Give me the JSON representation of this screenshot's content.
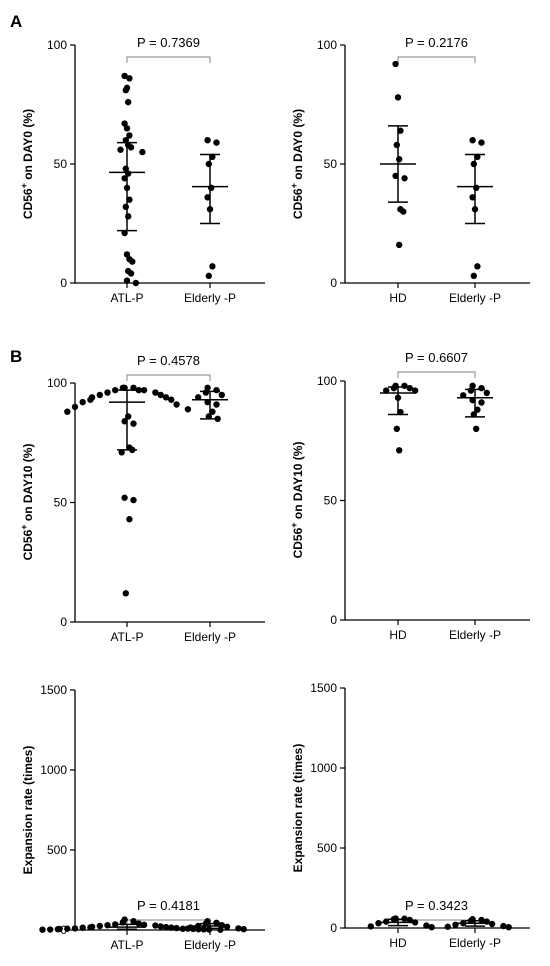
{
  "panel_labels": [
    "A",
    "B"
  ],
  "chart_data": [
    {
      "type": "scatter",
      "panel": "A",
      "ylabel": "CD56+ on DAY0 (%)",
      "ylabel_main": "CD56",
      "ylabel_sup": "+",
      "ylabel_rest": " on DAY0 (%)",
      "ylim": [
        0,
        100
      ],
      "yticks": [
        0,
        50,
        100
      ],
      "categories": [
        "ATL-P",
        "Elderly -P"
      ],
      "p_value": "P = 0.7369",
      "groups": [
        {
          "name": "ATL-P",
          "mean": 46.5,
          "sd_low": 22,
          "sd_high": 59,
          "values": [
            87,
            82,
            86,
            81,
            76,
            67,
            65,
            62,
            60,
            58,
            57,
            56,
            55,
            48,
            46,
            44,
            40,
            35,
            32,
            28,
            21,
            12,
            10,
            9,
            5,
            4,
            1,
            0
          ]
        },
        {
          "name": "Elderly -P",
          "mean": 40.5,
          "sd_low": 25,
          "sd_high": 54,
          "values": [
            60,
            59,
            53,
            50,
            40,
            36,
            31,
            7,
            3
          ]
        }
      ]
    },
    {
      "type": "scatter",
      "panel": "A",
      "ylabel": "CD56+ on DAY0 (%)",
      "ylabel_main": "CD56",
      "ylabel_sup": "+",
      "ylabel_rest": " on DAY0 (%)",
      "ylim": [
        0,
        100
      ],
      "yticks": [
        0,
        50,
        100
      ],
      "categories": [
        "HD",
        "Elderly -P"
      ],
      "p_value": "P = 0.2176",
      "groups": [
        {
          "name": "HD",
          "mean": 50,
          "sd_low": 34,
          "sd_high": 66,
          "values": [
            92,
            78,
            64,
            58,
            52,
            45,
            44,
            31,
            30,
            16
          ]
        },
        {
          "name": "Elderly -P",
          "mean": 40.5,
          "sd_low": 25,
          "sd_high": 54,
          "values": [
            60,
            59,
            53,
            50,
            40,
            36,
            31,
            7,
            3
          ]
        }
      ]
    },
    {
      "type": "scatter",
      "panel": "B",
      "ylabel": "CD56+ on DAY10 (%)",
      "ylabel_main": "CD56",
      "ylabel_sup": "+",
      "ylabel_rest": " on DAY10 (%)",
      "ylim": [
        0,
        100
      ],
      "yticks": [
        0,
        50,
        100
      ],
      "categories": [
        "ATL-P",
        "Elderly -P"
      ],
      "p_value": "P = 0.4578",
      "groups": [
        {
          "name": "ATL-P",
          "mean": 92,
          "sd_low": 72,
          "sd_high": 97,
          "values": [
            98,
            98,
            98,
            97,
            97,
            97,
            96,
            96,
            95,
            95,
            94,
            94,
            93,
            93,
            92,
            91,
            90,
            89,
            88,
            86,
            84,
            83,
            73,
            72,
            71,
            52,
            51,
            43,
            12
          ]
        },
        {
          "name": "Elderly -P",
          "mean": 93,
          "sd_low": 85,
          "sd_high": 96.5,
          "values": [
            98,
            97,
            96,
            95,
            94,
            92,
            91,
            88,
            86,
            85
          ]
        }
      ]
    },
    {
      "type": "scatter",
      "panel": "B",
      "ylabel": "CD56+ on DAY10 (%)",
      "ylabel_main": "CD56",
      "ylabel_sup": "+",
      "ylabel_rest": " on DAY10 (%)",
      "ylim": [
        0,
        100
      ],
      "yticks": [
        0,
        50,
        100
      ],
      "categories": [
        "HD",
        "Elderly -P"
      ],
      "p_value": "P = 0.6607",
      "groups": [
        {
          "name": "HD",
          "mean": 95,
          "sd_low": 86,
          "sd_high": 97.5,
          "values": [
            98,
            98,
            97,
            97,
            96,
            96,
            93,
            87,
            80,
            71
          ]
        },
        {
          "name": "Elderly -P",
          "mean": 93,
          "sd_low": 85,
          "sd_high": 96.5,
          "values": [
            98,
            97,
            96,
            95,
            94,
            92,
            91,
            88,
            86,
            80
          ]
        }
      ]
    },
    {
      "type": "scatter",
      "panel": "B",
      "ylabel": "Expansion rate (times)",
      "ylim": [
        0,
        1500
      ],
      "yticks": [
        0,
        500,
        1000,
        1500
      ],
      "categories": [
        "ATL-P",
        "Elderly -P"
      ],
      "p_value": "P = 0.4181",
      "groups": [
        {
          "name": "ATL-P",
          "mean": 18,
          "sd_low": 5,
          "sd_high": 35,
          "values": [
            65,
            55,
            48,
            40,
            35,
            32,
            30,
            28,
            25,
            22,
            20,
            18,
            16,
            15,
            14,
            12,
            10,
            9,
            8,
            7,
            6,
            5,
            5,
            4,
            3,
            3,
            2,
            2
          ]
        },
        {
          "name": "Elderly -P",
          "mean": 25,
          "sd_low": 10,
          "sd_high": 40,
          "values": [
            55,
            45,
            40,
            30,
            25,
            20,
            15,
            10,
            8,
            5
          ]
        }
      ]
    },
    {
      "type": "scatter",
      "panel": "B",
      "ylabel": "Expansion rate (times)",
      "ylim": [
        0,
        1500
      ],
      "yticks": [
        0,
        500,
        1000,
        1500
      ],
      "categories": [
        "HD",
        "Elderly -P"
      ],
      "p_value": "P = 0.3423",
      "groups": [
        {
          "name": "HD",
          "mean": 35,
          "sd_low": 15,
          "sd_high": 55,
          "values": [
            60,
            58,
            55,
            50,
            40,
            35,
            30,
            15,
            10,
            5
          ]
        },
        {
          "name": "Elderly -P",
          "mean": 30,
          "sd_low": 12,
          "sd_high": 45,
          "values": [
            55,
            50,
            45,
            40,
            30,
            25,
            20,
            12,
            8,
            5
          ]
        }
      ]
    }
  ]
}
